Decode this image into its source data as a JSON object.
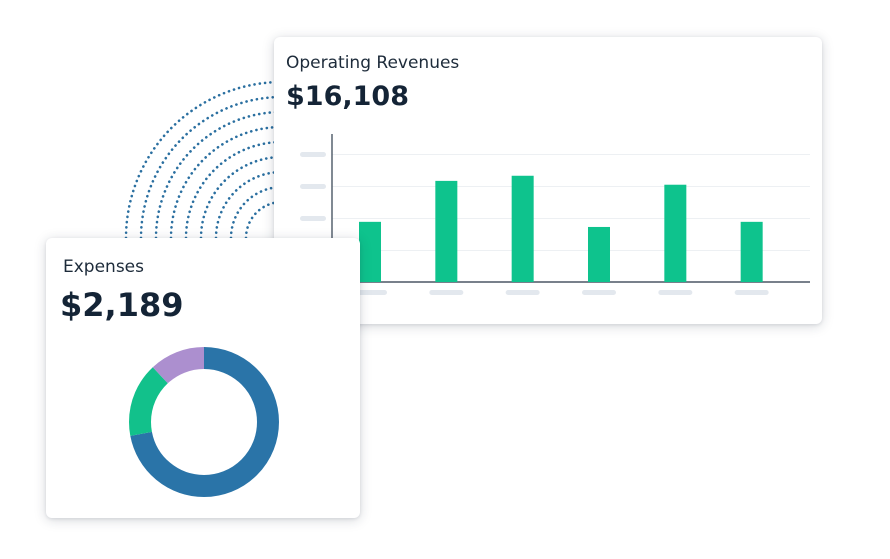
{
  "revenue_card": {
    "title": "Operating Revenues",
    "amount": "$16,108"
  },
  "expenses_card": {
    "title": "Expenses",
    "amount": "$2,189"
  },
  "colors": {
    "bar": "#0ec38d",
    "donut_blue": "#2a74a8",
    "donut_green": "#12c18b",
    "donut_purple": "#ac8fcf",
    "dots": "#2a6fa0",
    "placeholder": "#e3e8ee"
  },
  "chart_data": [
    {
      "type": "bar",
      "categories": [
        "",
        "",
        "",
        "",
        "",
        ""
      ],
      "values": [
        0.47,
        0.79,
        0.83,
        0.43,
        0.76,
        0.47
      ],
      "value_unit": "fraction of axis height",
      "title": "Operating Revenues",
      "xlabel": "",
      "ylabel": "",
      "ylim": [
        0,
        1
      ],
      "grid": true
    },
    {
      "type": "pie",
      "style": "donut",
      "values": [
        0.72,
        0.16,
        0.12
      ],
      "colors": [
        "#2a74a8",
        "#12c18b",
        "#ac8fcf"
      ],
      "title": "Expenses"
    }
  ]
}
